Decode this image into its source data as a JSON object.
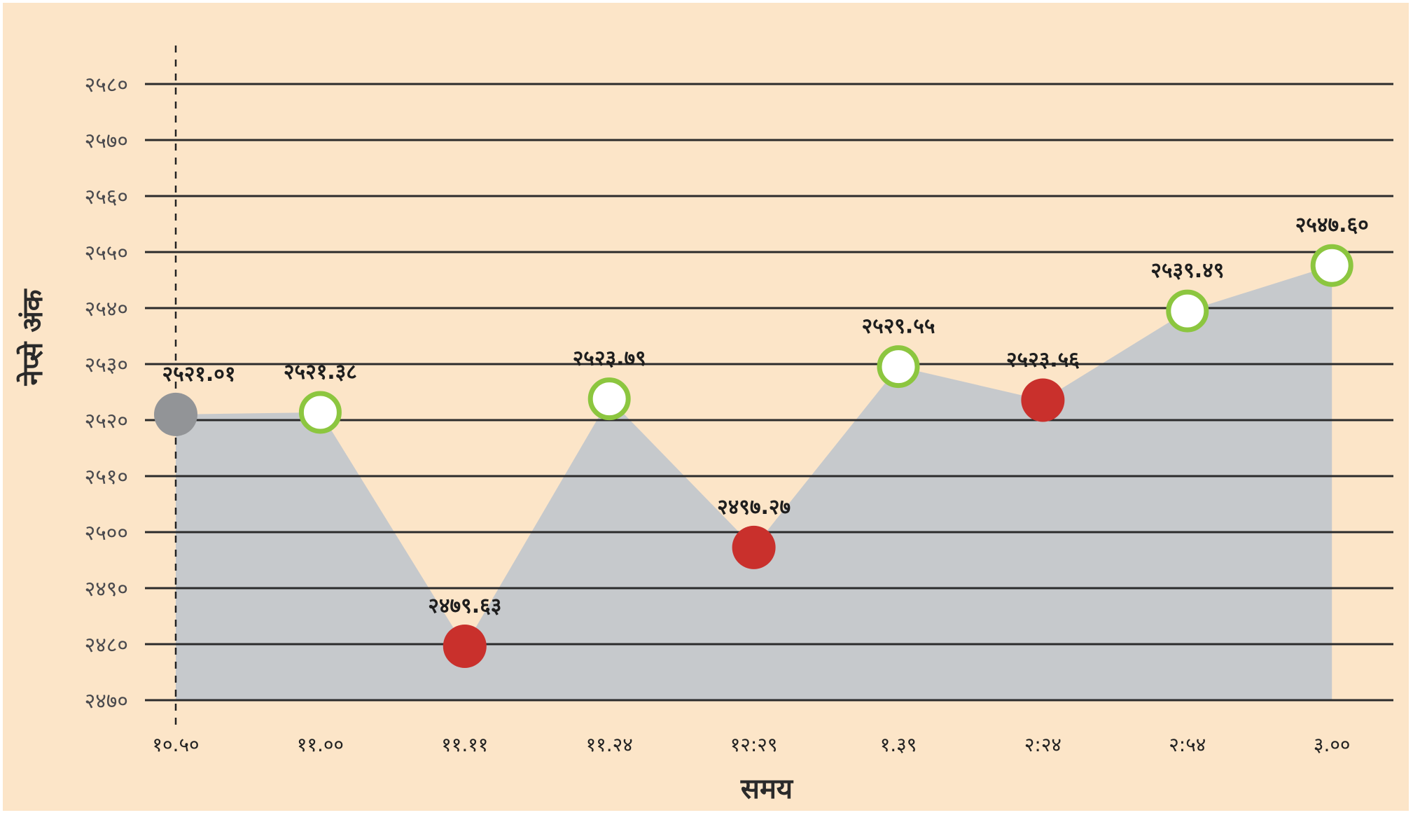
{
  "chart_data": {
    "type": "area",
    "title": "",
    "xlabel": "समय",
    "ylabel": "नेप्से अंक",
    "categories": [
      "१०.५०",
      "११.००",
      "११.११",
      "११.२४",
      "१२:२९",
      "१.३९",
      "२:२४",
      "२:५४",
      "३.००"
    ],
    "series": [
      {
        "name": "नेप्से अंक",
        "values": [
          2521.01,
          2521.38,
          2479.63,
          2523.79,
          2497.27,
          2529.55,
          2523.56,
          2539.49,
          2547.6
        ],
        "value_labels": [
          "२५२१.०१",
          "२५२१.३८",
          "२४७९.६३",
          "२५२३.७९",
          "२४९७.२७",
          "२५२९.५५",
          "२५२३.५६",
          "२५३९.४९",
          "२५४७.६०"
        ],
        "marker_types": [
          "start",
          "up",
          "down",
          "up",
          "down",
          "up",
          "down",
          "up",
          "up"
        ]
      }
    ],
    "ylim": [
      2470,
      2580
    ],
    "yticks": [
      2470,
      2480,
      2490,
      2500,
      2510,
      2520,
      2530,
      2540,
      2550,
      2560,
      2570,
      2580
    ],
    "ytick_labels": [
      "२४७०",
      "२४८०",
      "२४९०",
      "२५००",
      "२५१०",
      "२५२०",
      "२५३०",
      "२५४०",
      "२५५०",
      "२५६०",
      "२५७०",
      "२५८०"
    ],
    "grid": true,
    "legend": "none"
  },
  "colors": {
    "background": "#fce5c8",
    "area_fill": "#c6c9cc",
    "gridline": "#2b2b2b",
    "marker_up_ring": "#8cc63f",
    "marker_up_fill": "#ffffff",
    "marker_down": "#c9302c",
    "marker_start": "#929497"
  }
}
